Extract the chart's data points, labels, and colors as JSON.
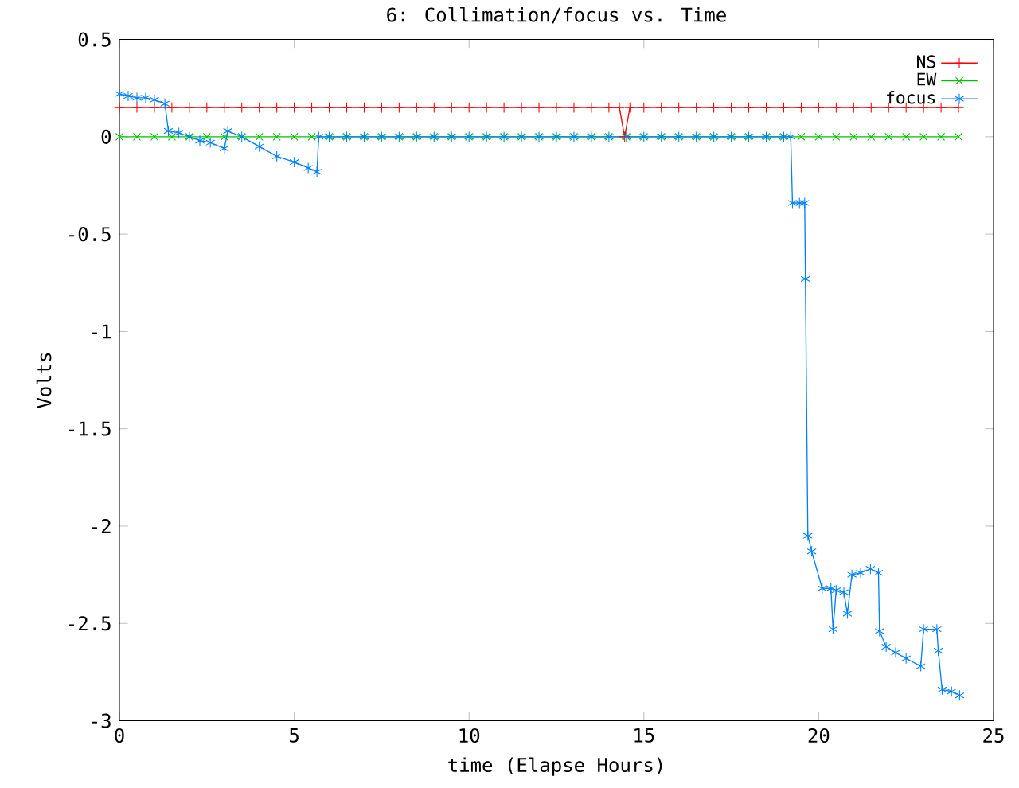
{
  "chart_data": {
    "type": "line",
    "title": "6: Collimation/focus vs. Time",
    "xlabel": "time (Elapse Hours)",
    "ylabel": "Volts",
    "xlim": [
      0,
      25
    ],
    "xticks": [
      0,
      5,
      10,
      15,
      20,
      25
    ],
    "ylim": [
      -3,
      0.5
    ],
    "yticks": [
      -3,
      -2.5,
      -2,
      -1.5,
      -1,
      -0.5,
      0,
      0.5
    ],
    "legend": "top right",
    "series": [
      {
        "name": "NS",
        "color": "#ff0000",
        "marker": "cross",
        "x": [
          0,
          0.5,
          1,
          1.5,
          2,
          2.5,
          3,
          3.5,
          4,
          4.5,
          5,
          5.5,
          6,
          6.5,
          7,
          7.5,
          8,
          8.5,
          9,
          9.5,
          10,
          10.5,
          11,
          11.5,
          12,
          12.5,
          13,
          13.5,
          14,
          14.3,
          14.45,
          14.6,
          15,
          15.5,
          16,
          16.5,
          17,
          17.5,
          18,
          18.5,
          19,
          19.5,
          20,
          20.5,
          21,
          21.5,
          22,
          22.5,
          23,
          23.5,
          24
        ],
        "values": [
          0.15,
          0.15,
          0.15,
          0.15,
          0.15,
          0.15,
          0.15,
          0.15,
          0.15,
          0.15,
          0.15,
          0.15,
          0.15,
          0.15,
          0.15,
          0.15,
          0.15,
          0.15,
          0.15,
          0.15,
          0.15,
          0.15,
          0.15,
          0.15,
          0.15,
          0.15,
          0.15,
          0.15,
          0.15,
          0.15,
          0,
          0.15,
          0.15,
          0.15,
          0.15,
          0.15,
          0.15,
          0.15,
          0.15,
          0.15,
          0.15,
          0.15,
          0.15,
          0.15,
          0.15,
          0.15,
          0.15,
          0.15,
          0.15,
          0.15,
          0.15
        ]
      },
      {
        "name": "EW",
        "color": "#00c000",
        "marker": "cross",
        "x": [
          0,
          0.5,
          1,
          1.5,
          2,
          2.5,
          3,
          3.5,
          4,
          4.5,
          5,
          5.5,
          6,
          6.5,
          7,
          7.5,
          8,
          8.5,
          9,
          9.5,
          10,
          10.5,
          11,
          11.5,
          12,
          12.5,
          13,
          13.5,
          14,
          14.5,
          15,
          15.5,
          16,
          16.5,
          17,
          17.5,
          18,
          18.5,
          19,
          19.5,
          20,
          20.5,
          21,
          21.5,
          22,
          22.5,
          23,
          23.5,
          24
        ],
        "values": [
          0,
          0,
          0,
          0,
          0,
          0,
          0,
          0,
          0,
          0,
          0,
          0,
          0,
          0,
          0,
          0,
          0,
          0,
          0,
          0,
          0,
          0,
          0,
          0,
          0,
          0,
          0,
          0,
          0,
          0,
          0,
          0,
          0,
          0,
          0,
          0,
          0,
          0,
          0,
          0,
          0,
          0,
          0,
          0,
          0,
          0,
          0,
          0,
          0
        ]
      },
      {
        "name": "focus",
        "color": "#0080ff",
        "marker": "cross",
        "x": [
          0,
          0.25,
          0.5,
          0.75,
          1,
          1.3,
          1.4,
          1.7,
          2,
          2.3,
          2.6,
          3,
          3.1,
          3.5,
          4,
          4.5,
          5,
          5.4,
          5.65,
          5.7,
          6,
          6.5,
          7,
          7.5,
          8,
          8.5,
          9,
          9.5,
          10,
          10.5,
          11,
          11.5,
          12,
          12.5,
          13,
          13.5,
          14,
          14.5,
          15,
          15.5,
          16,
          16.5,
          17,
          17.5,
          18,
          18.5,
          19,
          19.2,
          19.25,
          19.45,
          19.6,
          19.62,
          19.69,
          19.8,
          20.1,
          20.35,
          20.41,
          20.5,
          20.72,
          20.82,
          20.95,
          21.2,
          21.48,
          21.71,
          21.74,
          21.93,
          22.2,
          22.5,
          22.92,
          23,
          23.38,
          23.42,
          23.53,
          23.8,
          24.03
        ],
        "values": [
          0.22,
          0.21,
          0.2,
          0.2,
          0.19,
          0.17,
          0.03,
          0.02,
          0,
          -0.02,
          -0.03,
          -0.06,
          0.03,
          0,
          -0.05,
          -0.1,
          -0.13,
          -0.16,
          -0.18,
          0,
          0,
          0,
          0,
          0,
          0,
          0,
          0,
          0,
          0,
          0,
          0,
          0,
          0,
          0,
          0,
          0,
          0,
          0,
          0,
          0,
          0,
          0,
          0,
          0,
          0,
          0,
          0,
          0,
          -0.34,
          -0.34,
          -0.34,
          -0.73,
          -2.05,
          -2.13,
          -2.32,
          -2.32,
          -2.53,
          -2.33,
          -2.34,
          -2.45,
          -2.25,
          -2.24,
          -2.22,
          -2.24,
          -2.54,
          -2.62,
          -2.65,
          -2.68,
          -2.72,
          -2.53,
          -2.53,
          -2.64,
          -2.84,
          -2.85,
          -2.87
        ]
      }
    ]
  }
}
